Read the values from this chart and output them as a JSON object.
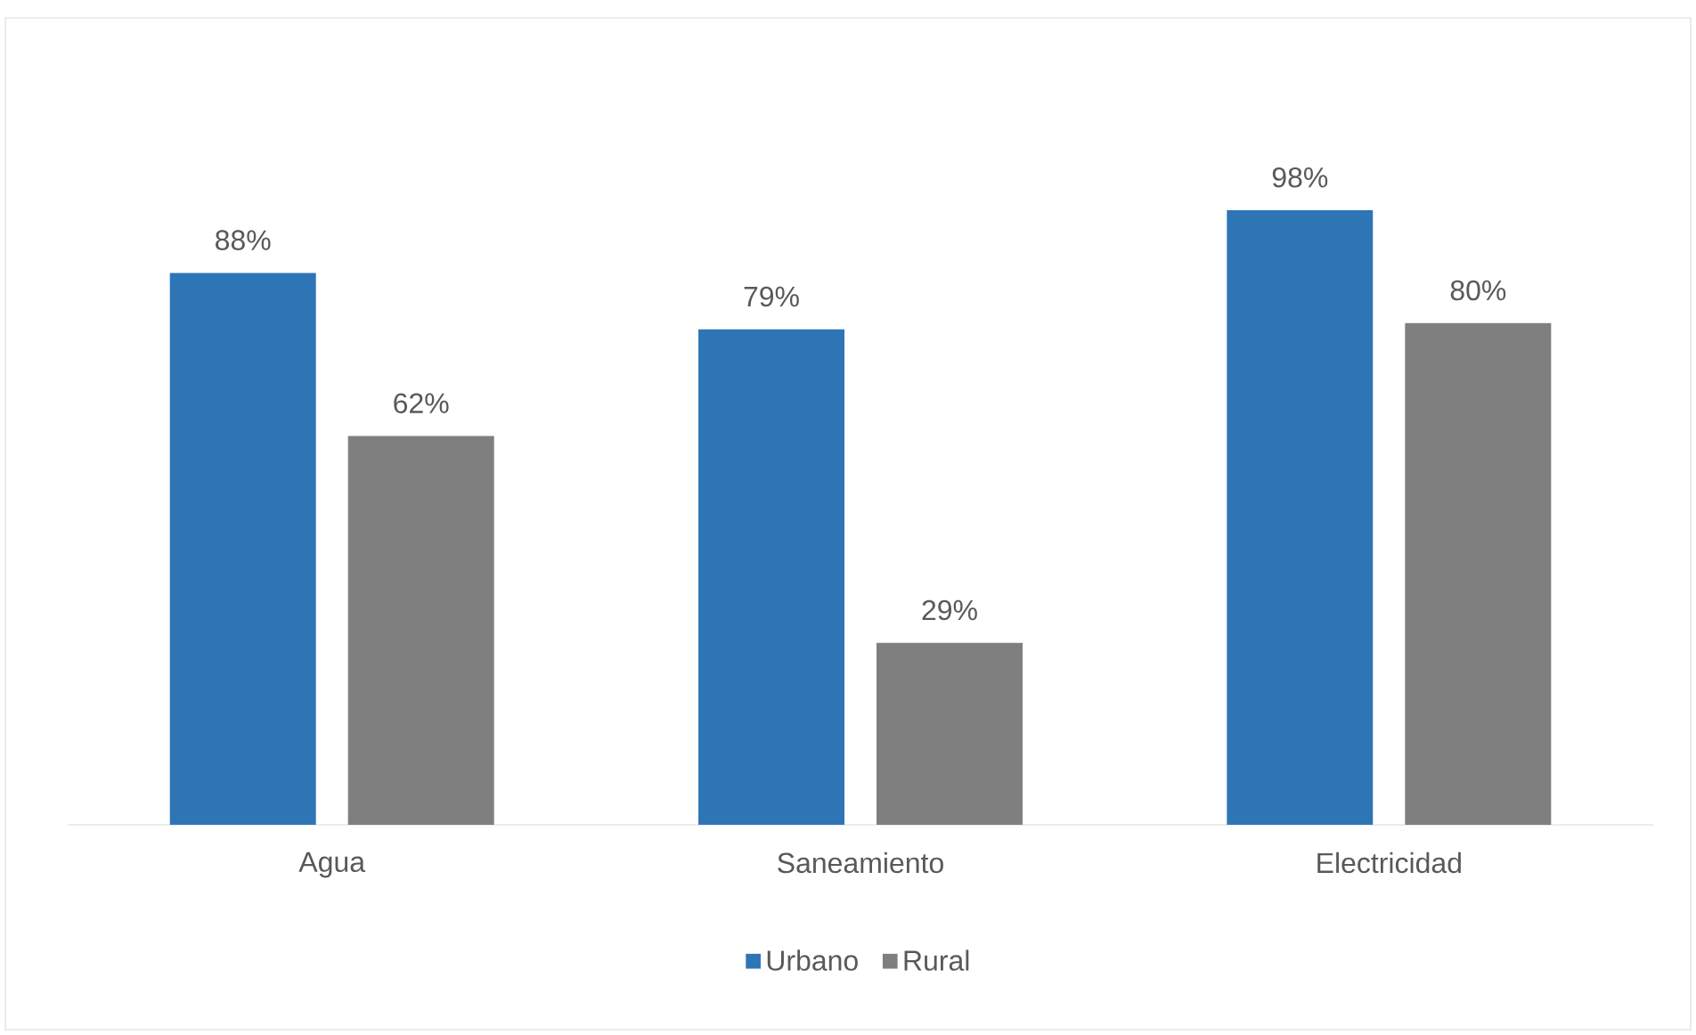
{
  "chart_data": {
    "type": "bar",
    "categories": [
      "Agua",
      "Saneamiento",
      "Electricidad"
    ],
    "series": [
      {
        "name": "Urbano",
        "color": "#2e75b6",
        "values": [
          88,
          79,
          98
        ],
        "value_labels": [
          "88%",
          "79%",
          "98%"
        ]
      },
      {
        "name": "Rural",
        "color": "#7f7f7f",
        "values": [
          62,
          29,
          80
        ],
        "value_labels": [
          "62%",
          "29%",
          "80%"
        ]
      }
    ],
    "legend": "bottom"
  }
}
